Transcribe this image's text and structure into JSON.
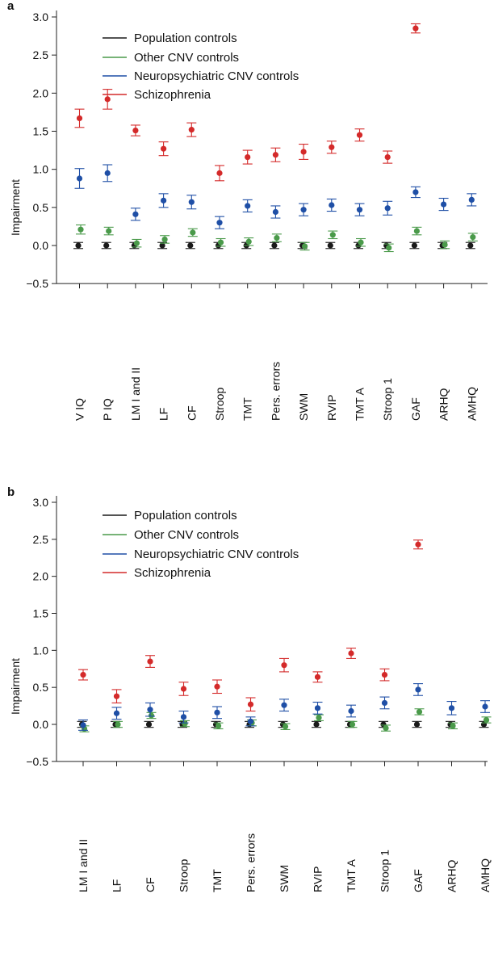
{
  "panels": [
    {
      "panel_label": "a",
      "ylabel": "Impairment",
      "yticks": [
        "3.0",
        "2.5",
        "2.0",
        "1.5",
        "1.0",
        "0.5",
        "0.0",
        "−0.5"
      ],
      "legend": [
        "Population controls",
        "Other CNV controls",
        "Neuropsychiatric CNV controls",
        "Schizophrenia"
      ]
    },
    {
      "panel_label": "b",
      "ylabel": "Impairment",
      "yticks": [
        "3.0",
        "2.5",
        "2.0",
        "1.5",
        "1.0",
        "0.5",
        "0.0",
        "−0.5"
      ],
      "legend": [
        "Population controls",
        "Other CNV controls",
        "Neuropsychiatric CNV controls",
        "Schizophrenia"
      ]
    }
  ],
  "chart_data": [
    {
      "type": "scatter",
      "panel": "a",
      "title": "",
      "xlabel": "",
      "ylabel": "Impairment",
      "ylim": [
        -0.5,
        3.0
      ],
      "grid": false,
      "legend_position": "top",
      "colors": {
        "Population controls": "#1a1a1a",
        "Other CNV controls": "#4a9a4a",
        "Neuropsychiatric CNV controls": "#1f4fa6",
        "Schizophrenia": "#d42a2a"
      },
      "categories": [
        "V IQ",
        "P IQ",
        "LM I and II",
        "LF",
        "CF",
        "Stroop",
        "TMT",
        "Pers. errors",
        "SWM",
        "RVIP",
        "TMT A",
        "Stroop 1",
        "GAF",
        "ARHQ",
        "AMHQ"
      ],
      "series": [
        {
          "name": "Population controls",
          "values": [
            0.0,
            0.0,
            0.0,
            0.0,
            0.0,
            0.0,
            0.0,
            0.0,
            0.0,
            0.0,
            0.0,
            0.0,
            0.0,
            0.0,
            0.0
          ],
          "errors": [
            0.04,
            0.04,
            0.04,
            0.04,
            0.04,
            0.04,
            0.04,
            0.04,
            0.04,
            0.04,
            0.04,
            0.04,
            0.04,
            0.04,
            0.04
          ]
        },
        {
          "name": "Other CNV controls",
          "values": [
            0.21,
            0.19,
            0.03,
            0.08,
            0.17,
            0.04,
            0.05,
            0.1,
            -0.01,
            0.14,
            0.04,
            -0.03,
            0.19,
            0.01,
            0.11
          ],
          "errors": [
            0.06,
            0.05,
            0.05,
            0.05,
            0.05,
            0.05,
            0.05,
            0.05,
            0.05,
            0.05,
            0.05,
            0.05,
            0.05,
            0.05,
            0.05
          ]
        },
        {
          "name": "Neuropsychiatric CNV controls",
          "values": [
            0.88,
            0.95,
            0.41,
            0.59,
            0.57,
            0.3,
            0.52,
            0.44,
            0.47,
            0.53,
            0.47,
            0.49,
            0.7,
            0.54,
            0.6
          ],
          "errors": [
            0.13,
            0.11,
            0.08,
            0.09,
            0.09,
            0.08,
            0.08,
            0.08,
            0.08,
            0.08,
            0.08,
            0.09,
            0.07,
            0.08,
            0.08
          ]
        },
        {
          "name": "Schizophrenia",
          "values": [
            1.67,
            1.92,
            1.51,
            1.27,
            1.52,
            0.95,
            1.16,
            1.19,
            1.23,
            1.29,
            1.45,
            1.16,
            2.85,
            null,
            null
          ],
          "errors": [
            0.12,
            0.13,
            0.07,
            0.09,
            0.09,
            0.1,
            0.09,
            0.09,
            0.1,
            0.08,
            0.08,
            0.08,
            0.06,
            null,
            null
          ]
        }
      ]
    },
    {
      "type": "scatter",
      "panel": "b",
      "title": "",
      "xlabel": "",
      "ylabel": "Impairment",
      "ylim": [
        -0.5,
        3.0
      ],
      "grid": false,
      "legend_position": "top",
      "colors": {
        "Population controls": "#1a1a1a",
        "Other CNV controls": "#4a9a4a",
        "Neuropsychiatric CNV controls": "#1f4fa6",
        "Schizophrenia": "#d42a2a"
      },
      "categories": [
        "LM I and II",
        "LF",
        "CF",
        "Stroop",
        "TMT",
        "Pers. errors",
        "SWM",
        "RVIP",
        "TMT A",
        "Stroop 1",
        "GAF",
        "ARHQ",
        "AMHQ"
      ],
      "series": [
        {
          "name": "Population controls",
          "values": [
            0.0,
            0.0,
            0.0,
            0.0,
            0.0,
            0.0,
            0.0,
            0.0,
            0.0,
            0.0,
            0.0,
            0.0,
            0.0
          ],
          "errors": [
            0.04,
            0.04,
            0.04,
            0.04,
            0.04,
            0.04,
            0.04,
            0.04,
            0.04,
            0.04,
            0.04,
            0.04,
            0.04
          ]
        },
        {
          "name": "Other CNV controls",
          "values": [
            -0.06,
            0.0,
            0.12,
            0.01,
            -0.02,
            0.02,
            -0.03,
            0.09,
            0.0,
            -0.05,
            0.17,
            -0.02,
            0.06
          ],
          "errors": [
            0.04,
            0.04,
            0.04,
            0.04,
            0.04,
            0.04,
            0.04,
            0.04,
            0.04,
            0.04,
            0.04,
            0.04,
            0.04
          ]
        },
        {
          "name": "Neuropsychiatric CNV controls",
          "values": [
            -0.01,
            0.15,
            0.2,
            0.1,
            0.16,
            0.04,
            0.26,
            0.22,
            0.18,
            0.29,
            0.47,
            0.22,
            0.24
          ],
          "errors": [
            0.07,
            0.08,
            0.09,
            0.08,
            0.08,
            0.06,
            0.08,
            0.08,
            0.08,
            0.08,
            0.08,
            0.09,
            0.08
          ]
        },
        {
          "name": "Schizophrenia",
          "values": [
            0.67,
            0.38,
            0.85,
            0.48,
            0.51,
            0.27,
            0.8,
            0.64,
            0.96,
            0.67,
            2.43,
            null,
            null
          ],
          "errors": [
            0.07,
            0.09,
            0.08,
            0.09,
            0.09,
            0.09,
            0.09,
            0.07,
            0.07,
            0.08,
            0.06,
            null,
            null
          ]
        }
      ]
    }
  ]
}
